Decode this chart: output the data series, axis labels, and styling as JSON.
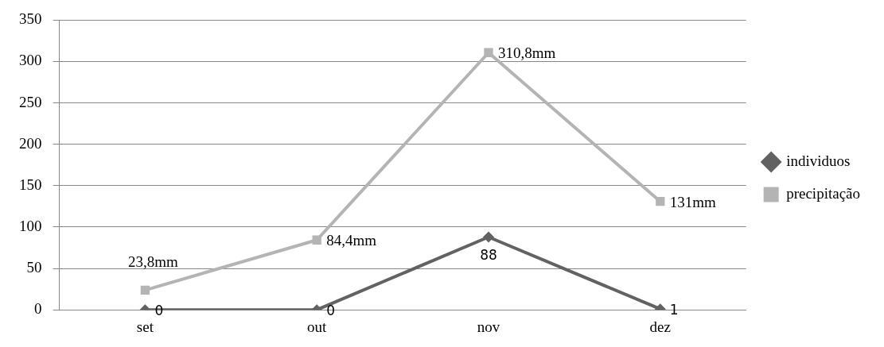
{
  "chart_data": {
    "type": "line",
    "categories": [
      "set",
      "out",
      "nov",
      "dez"
    ],
    "series": [
      {
        "name": "individuos",
        "color": "#626262",
        "marker": "diamond",
        "values": [
          0,
          0,
          88,
          1
        ],
        "value_labels": [
          "0",
          "0",
          "88",
          "1"
        ]
      },
      {
        "name": "precipitação",
        "color": "#b4b4b4",
        "marker": "square",
        "values": [
          23.8,
          84.4,
          310.8,
          131
        ],
        "value_labels": [
          "23,8mm",
          "84,4mm",
          "310,8mm",
          "131mm"
        ]
      }
    ],
    "ylim": [
      0,
      350
    ],
    "yticks": [
      0,
      50,
      100,
      150,
      200,
      250,
      300,
      350
    ],
    "grid": "y",
    "legend": "right"
  }
}
